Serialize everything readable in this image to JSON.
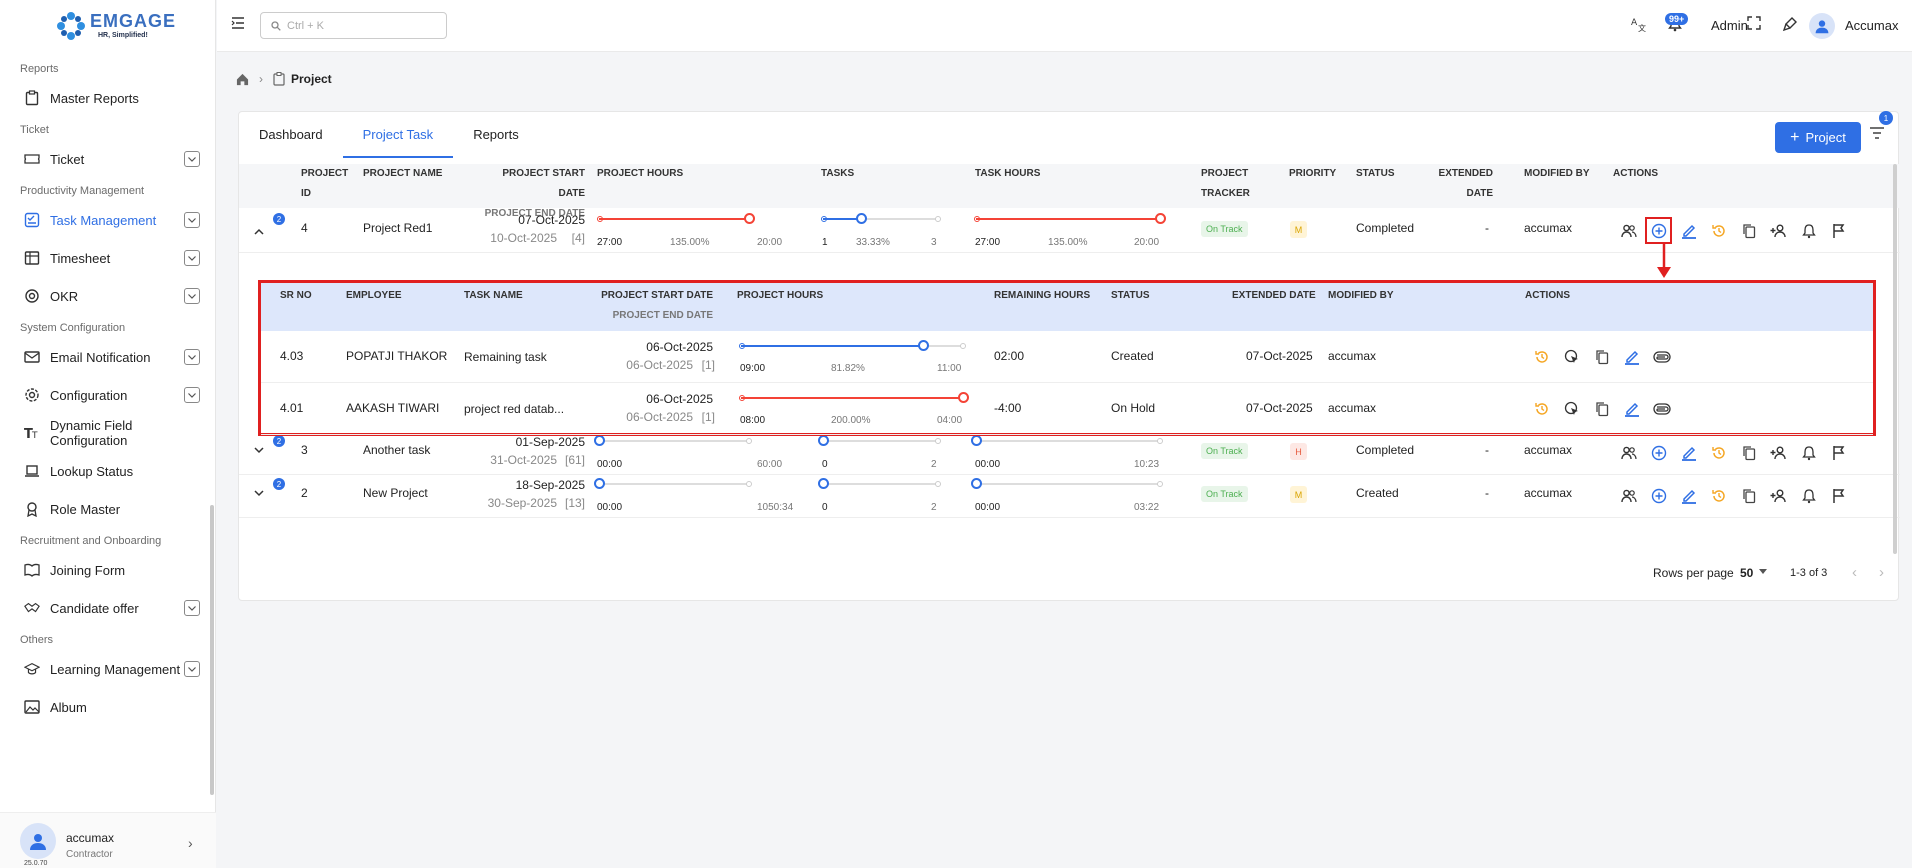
{
  "app": {
    "brand": "EMGAGE",
    "tagline": "HR, Simplified!",
    "version": "25.0.70"
  },
  "topbar": {
    "search_placeholder": "Ctrl + K",
    "notif_badge": "99+",
    "role": "Admin",
    "user": "Accumax"
  },
  "sidebar": {
    "items": [
      {
        "type": "section",
        "label": "Reports"
      },
      {
        "type": "item",
        "label": "Master Reports",
        "icon": "clipboard-icon",
        "chevron": false
      },
      {
        "type": "section",
        "label": "Ticket"
      },
      {
        "type": "item",
        "label": "Ticket",
        "icon": "ticket-icon",
        "chevron": true
      },
      {
        "type": "section",
        "label": "Productivity Management"
      },
      {
        "type": "item",
        "label": "Task Management",
        "icon": "task-icon",
        "chevron": true,
        "active": true
      },
      {
        "type": "item",
        "label": "Timesheet",
        "icon": "timesheet-icon",
        "chevron": true
      },
      {
        "type": "item",
        "label": "OKR",
        "icon": "target-icon",
        "chevron": true
      },
      {
        "type": "section",
        "label": "System Configuration"
      },
      {
        "type": "item",
        "label": "Email Notification",
        "icon": "mail-icon",
        "chevron": true
      },
      {
        "type": "item",
        "label": "Configuration",
        "icon": "gear-icon",
        "chevron": true
      },
      {
        "type": "item",
        "label": "Dynamic Field Configuration",
        "icon": "text-field-icon",
        "chevron": false
      },
      {
        "type": "item",
        "label": "Lookup Status",
        "icon": "laptop-icon",
        "chevron": false
      },
      {
        "type": "item",
        "label": "Role Master",
        "icon": "badge-icon",
        "chevron": false
      },
      {
        "type": "section",
        "label": "Recruitment and Onboarding"
      },
      {
        "type": "item",
        "label": "Joining Form",
        "icon": "book-icon",
        "chevron": false
      },
      {
        "type": "item",
        "label": "Candidate offer",
        "icon": "handshake-icon",
        "chevron": true
      },
      {
        "type": "section",
        "label": "Others"
      },
      {
        "type": "item",
        "label": "Learning Management",
        "icon": "graduation-icon",
        "chevron": true
      },
      {
        "type": "item",
        "label": "Album",
        "icon": "image-icon",
        "chevron": false
      }
    ],
    "user": {
      "name": "accumax",
      "role": "Contractor"
    }
  },
  "breadcrumb": {
    "title": "Project"
  },
  "tabs": [
    {
      "label": "Dashboard"
    },
    {
      "label": "Project Task",
      "active": true
    },
    {
      "label": "Reports"
    }
  ],
  "add_button": "Project",
  "filter_badge": "1",
  "columns": {
    "project_id_1": "PROJECT",
    "project_id_2": "ID",
    "project_name": "PROJECT NAME",
    "start_date": "PROJECT START DATE",
    "end_date": "PROJECT END DATE",
    "project_hours": "PROJECT HOURS",
    "tasks": "TASKS",
    "task_hours": "TASK HOURS",
    "tracker_1": "PROJECT",
    "tracker_2": "TRACKER",
    "priority": "PRIORITY",
    "status": "STATUS",
    "extended_1": "EXTENDED",
    "extended_2": "DATE",
    "modified_by": "MODIFIED BY",
    "actions": "ACTIONS"
  },
  "rows": [
    {
      "id": "4",
      "badge": "2",
      "name": "Project Red1",
      "start": "07-Oct-2025",
      "end": "10-Oct-2025",
      "end_days": "[4]",
      "ph": {
        "actual": "27:00",
        "pct": "135.00%",
        "planned": "20:00",
        "progress": 1.0,
        "color": "#f44336"
      },
      "tasks": {
        "done": "1",
        "pct": "33.33%",
        "total": "3",
        "progress": 0.3333,
        "color": "#2f6fe4"
      },
      "th": {
        "actual": "27:00",
        "pct": "135.00%",
        "planned": "20:00",
        "progress": 1.0,
        "color": "#f44336"
      },
      "tracker": "On Track",
      "priority": "M",
      "status": "Completed",
      "extended": "-",
      "modified_by": "accumax"
    },
    {
      "id": "3",
      "badge": "2",
      "name": "Another task",
      "start": "01-Sep-2025",
      "end": "31-Oct-2025",
      "end_days": "[61]",
      "ph": {
        "actual": "00:00",
        "pct": "",
        "planned": "60:00",
        "progress": 0,
        "color": "#2f6fe4"
      },
      "tasks": {
        "done": "0",
        "pct": "",
        "total": "2",
        "progress": 0,
        "color": "#2f6fe4"
      },
      "th": {
        "actual": "00:00",
        "pct": "",
        "planned": "10:23",
        "progress": 0,
        "color": "#2f6fe4"
      },
      "tracker": "On Track",
      "priority": "H",
      "status": "Completed",
      "extended": "-",
      "modified_by": "accumax"
    },
    {
      "id": "2",
      "badge": "2",
      "name": "New Project",
      "start": "18-Sep-2025",
      "end": "30-Sep-2025",
      "end_days": "[13]",
      "ph": {
        "actual": "00:00",
        "pct": "",
        "planned": "1050:34",
        "progress": 0,
        "color": "#2f6fe4"
      },
      "tasks": {
        "done": "0",
        "pct": "",
        "total": "2",
        "progress": 0,
        "color": "#2f6fe4"
      },
      "th": {
        "actual": "00:00",
        "pct": "",
        "planned": "03:22",
        "progress": 0,
        "color": "#2f6fe4"
      },
      "tracker": "On Track",
      "priority": "M",
      "status": "Created",
      "extended": "-",
      "modified_by": "accumax"
    }
  ],
  "subtable": {
    "columns": {
      "sr": "SR NO",
      "employee": "EMPLOYEE",
      "task": "TASK NAME",
      "start": "PROJECT START DATE",
      "end": "PROJECT END DATE",
      "hours": "PROJECT HOURS",
      "remaining": "REMAINING HOURS",
      "status": "STATUS",
      "extended": "EXTENDED DATE",
      "modified": "MODIFIED BY",
      "actions": "ACTIONS"
    },
    "rows": [
      {
        "sr": "4.03",
        "employee": "POPATJI THAKOR",
        "task": "Remaining task",
        "start": "06-Oct-2025",
        "end": "06-Oct-2025",
        "days": "[1]",
        "actual": "09:00",
        "pct": "81.82%",
        "planned": "11:00",
        "progress": 0.8182,
        "color": "#2f6fe4",
        "remaining": "02:00",
        "status": "Created",
        "extended": "07-Oct-2025",
        "modified": "accumax"
      },
      {
        "sr": "4.01",
        "employee": "AAKASH TIWARI",
        "task": "project red datab...",
        "start": "06-Oct-2025",
        "end": "06-Oct-2025",
        "days": "[1]",
        "actual": "08:00",
        "pct": "200.00%",
        "planned": "04:00",
        "progress": 1.0,
        "color": "#f44336",
        "remaining": "-4:00",
        "status": "On Hold",
        "extended": "07-Oct-2025",
        "modified": "accumax"
      }
    ]
  },
  "footer": {
    "rows_per_page_label": "Rows per page",
    "rows_per_page": "50",
    "range": "1-3 of 3"
  }
}
